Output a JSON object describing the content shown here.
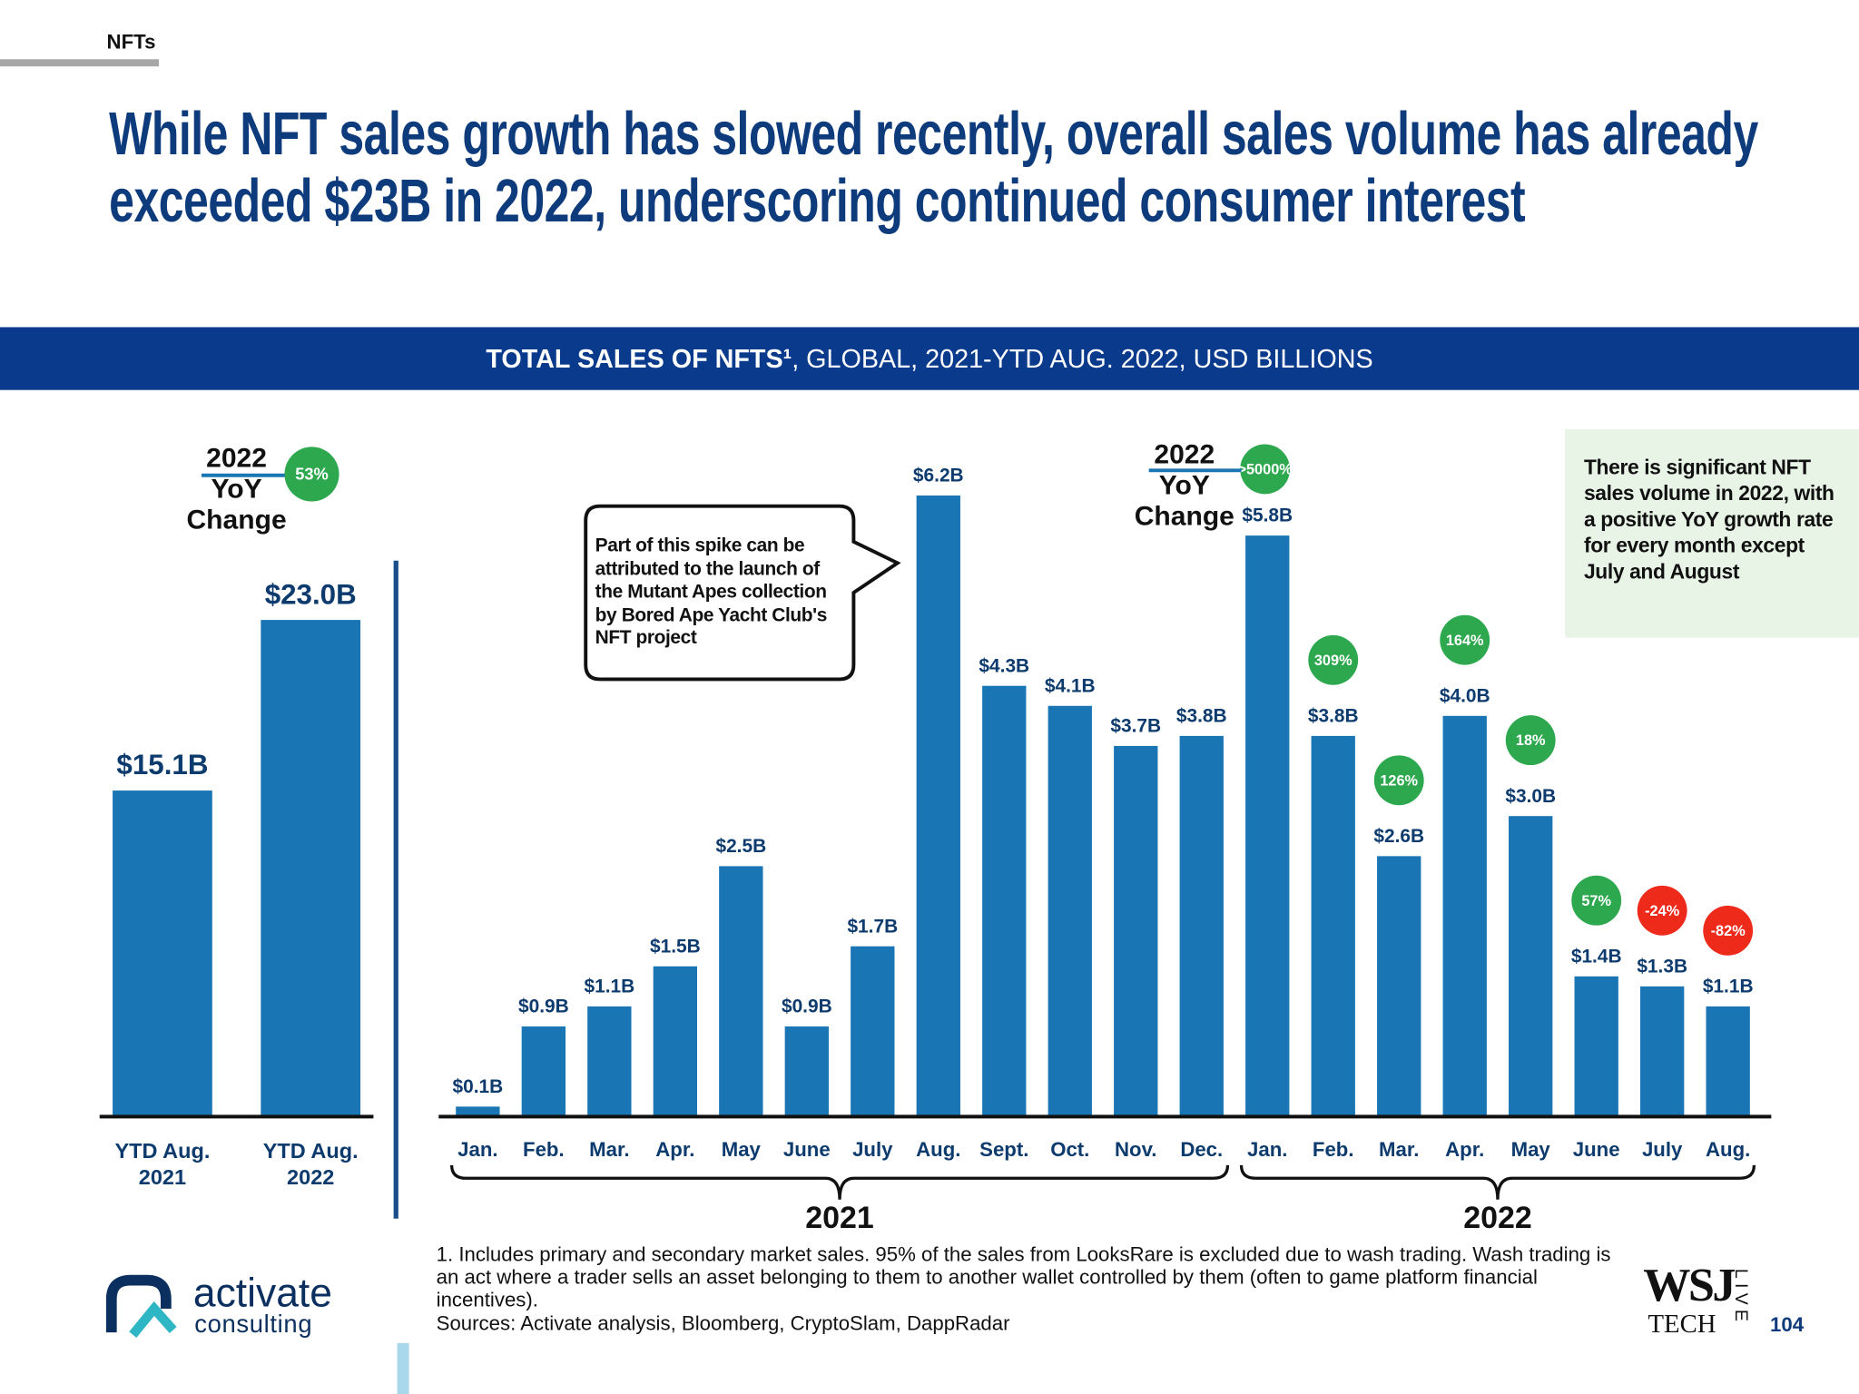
{
  "header": {
    "tag": "NFTs",
    "title": "While NFT sales growth has slowed recently, overall sales volume has already exceeded $23B in 2022, underscoring continued consumer interest"
  },
  "banner": {
    "bold": "TOTAL SALES OF NFTS¹",
    "rest": ", GLOBAL, 2021-YTD AUG. 2022, USD BILLIONS"
  },
  "chart_data": [
    {
      "type": "bar",
      "categories": [
        "YTD Aug. 2021",
        "YTD Aug. 2022"
      ],
      "values": [
        15.1,
        23.0
      ],
      "value_labels": [
        "$15.1B",
        "$23.0B"
      ],
      "color": "#1a75b5",
      "annotation": "2022 YoY Change",
      "yoy_change": {
        "value": 53,
        "label": "53%"
      },
      "positive_color": "#2ea84f"
    },
    {
      "type": "bar",
      "color": "#1a75b5",
      "positive_color": "#2ea84f",
      "negative_color": "#ee2a1b",
      "annotation": "2022 YoY Change",
      "callout": "Part of this spike can be attributed to the launch of the Mutant Apes collection by Bored Ape Yacht Club's NFT project",
      "note": "There is significant NFT sales volume in 2022, with a positive YoY growth rate for every month except July and August",
      "groups": [
        {
          "label": "2021",
          "categories": [
            "Jan.",
            "Feb.",
            "Mar.",
            "Apr.",
            "May",
            "June",
            "July",
            "Aug.",
            "Sept.",
            "Oct.",
            "Nov.",
            "Dec."
          ],
          "values": [
            0.1,
            0.9,
            1.1,
            1.5,
            2.5,
            0.9,
            1.7,
            6.2,
            4.3,
            4.1,
            3.7,
            3.8
          ],
          "value_labels": [
            "$0.1B",
            "$0.9B",
            "$1.1B",
            "$1.5B",
            "$2.5B",
            "$0.9B",
            "$1.7B",
            "$6.2B",
            "$4.3B",
            "$4.1B",
            "$3.7B",
            "$3.8B"
          ]
        },
        {
          "label": "2022",
          "categories": [
            "Jan.",
            "Feb.",
            "Mar.",
            "Apr.",
            "May",
            "June",
            "July",
            "Aug."
          ],
          "values": [
            5.8,
            3.8,
            2.6,
            4.0,
            3.0,
            1.4,
            1.3,
            1.1
          ],
          "value_labels": [
            "$5.8B",
            "$3.8B",
            "$2.6B",
            "$4.0B",
            "$3.0B",
            "$1.4B",
            "$1.3B",
            "$1.1B"
          ],
          "yoy_change": [
            {
              "value": 5000,
              "label": ">5000%"
            },
            {
              "value": 309,
              "label": "309%"
            },
            {
              "value": 126,
              "label": "126%"
            },
            {
              "value": 164,
              "label": "164%"
            },
            {
              "value": 18,
              "label": "18%"
            },
            {
              "value": 57,
              "label": "57%"
            },
            {
              "value": -24,
              "label": "-24%"
            },
            {
              "value": -82,
              "label": "-82%"
            }
          ]
        }
      ]
    }
  ],
  "footer": {
    "footnote": "1. Includes primary and secondary market sales. 95% of the sales from LooksRare is excluded due to wash trading. Wash trading is an act where a trader sells an asset belonging to them to another wallet controlled by them (often to game platform financial incentives).",
    "sources": "Sources: Activate analysis, Bloomberg, CryptoSlam, DappRadar",
    "logo_name": "activate",
    "logo_sub": "consulting",
    "wsj": "WSJ",
    "tech": "TECH",
    "live": "LIVE",
    "page_number": "104"
  }
}
